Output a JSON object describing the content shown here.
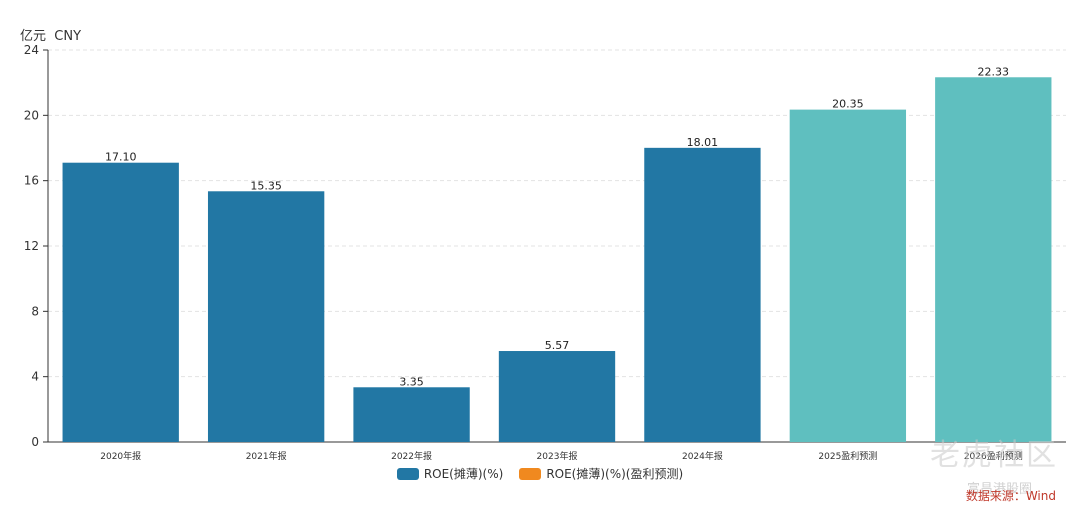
{
  "unit_label": "亿元  CNY",
  "colors": {
    "actual": "#2277a4",
    "forecast": "#5fbfbf",
    "legend_forecast": "#f0891f",
    "grid": "#e3e3e3",
    "axis": "#333333"
  },
  "legend": [
    {
      "label": "ROE(摊薄)(%)",
      "color": "#2277a4"
    },
    {
      "label": "ROE(摊薄)(%)(盈利预测)",
      "color": "#f0891f"
    }
  ],
  "watermark": "老虎社区",
  "watermark_sub": "富昌港股圈",
  "source": "数据来源：Wind",
  "chart_data": {
    "type": "bar",
    "categories": [
      "2020年报",
      "2021年报",
      "2022年报",
      "2023年报",
      "2024年报",
      "2025盈利预测",
      "2026盈利预测"
    ],
    "series": [
      {
        "name": "ROE(摊薄)(%)",
        "values": [
          17.1,
          15.35,
          3.35,
          5.57,
          18.01,
          null,
          null
        ]
      },
      {
        "name": "ROE(摊薄)(%)(盈利预测)",
        "values": [
          null,
          null,
          null,
          null,
          null,
          20.35,
          22.33
        ]
      }
    ],
    "value_labels": [
      "17.10",
      "15.35",
      "3.35",
      "5.57",
      "18.01",
      "20.35",
      "22.33"
    ],
    "yticks": [
      "0",
      "4",
      "8",
      "12",
      "16",
      "20",
      "24"
    ],
    "ylim": [
      0,
      24
    ],
    "grid": true,
    "legend_position": "bottom-center"
  }
}
